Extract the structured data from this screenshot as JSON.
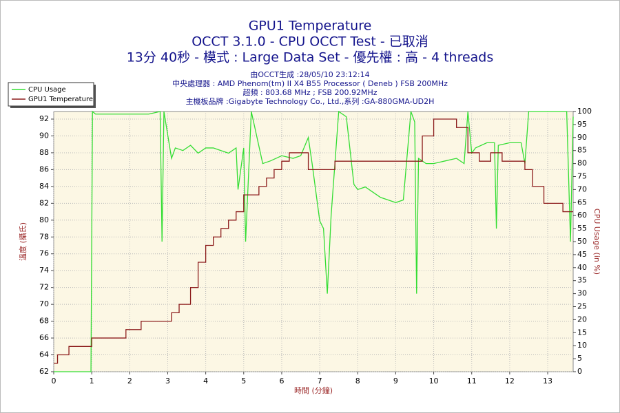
{
  "chart_data": {
    "type": "line",
    "title": "GPU1 Temperature",
    "subtitle": "OCCT 3.1.0 - CPU OCCT Test - 已取消",
    "subtitle2": "13分 40秒 - 模式 : Large Data Set - 優先權 : 高 - 4 threads",
    "info": [
      "由OCCT生成 :28/05/10 23:12:14",
      "中央處理器 : AMD Phenom(tm) II X4 B55 Processor ( Deneb ) FSB 200MHz",
      "超頻 : 803.68 MHz ; FSB 200.92MHz",
      "主機板品牌 :Gigabyte Technology Co., Ltd.,系列 :GA-880GMA-UD2H"
    ],
    "x_label": "時間 (分鐘)",
    "y_label": "溫度 (攝氏)",
    "y2_label": "CPU Usage (in %)",
    "xlim": [
      0,
      13.67
    ],
    "xticks": [
      0,
      1,
      2,
      3,
      4,
      5,
      6,
      7,
      8,
      9,
      10,
      11,
      12,
      13
    ],
    "ylim": [
      62,
      92.9
    ],
    "yticks": [
      62,
      64,
      66,
      68,
      70,
      72,
      74,
      76,
      78,
      80,
      82,
      84,
      86,
      88,
      90,
      92
    ],
    "y2lim": [
      0,
      100
    ],
    "y2ticks": [
      0,
      5,
      10,
      15,
      20,
      25,
      30,
      35,
      40,
      45,
      50,
      55,
      60,
      65,
      70,
      75,
      80,
      85,
      90,
      95,
      100
    ],
    "grid": true,
    "legend": "top-left",
    "series": [
      {
        "name": "CPU Usage",
        "color": "#33dd33",
        "axis": "y2",
        "x": [
          0,
          0.98,
          1.02,
          1.1,
          1.5,
          2.0,
          2.5,
          2.8,
          2.85,
          2.9,
          3.1,
          3.2,
          3.4,
          3.6,
          3.8,
          4.0,
          4.2,
          4.4,
          4.6,
          4.8,
          4.85,
          5.0,
          5.05,
          5.2,
          5.5,
          5.7,
          6.0,
          6.3,
          6.5,
          6.7,
          6.8,
          7.0,
          7.1,
          7.2,
          7.3,
          7.5,
          7.7,
          7.9,
          8.0,
          8.2,
          8.4,
          8.6,
          8.8,
          9.0,
          9.2,
          9.4,
          9.5,
          9.55,
          9.6,
          9.8,
          10.0,
          10.3,
          10.6,
          10.8,
          10.9,
          11.0,
          11.1,
          11.4,
          11.6,
          11.65,
          11.7,
          12.0,
          12.3,
          12.4,
          12.5,
          13.0,
          13.5,
          13.6,
          13.67
        ],
        "values": [
          0,
          0,
          100,
          99,
          99,
          99,
          99,
          100,
          50,
          100,
          82,
          86,
          85,
          87,
          84,
          86,
          86,
          85,
          84,
          86,
          70,
          86,
          50,
          100,
          80,
          81,
          83,
          82,
          83,
          90,
          80,
          58,
          55,
          30,
          60,
          100,
          98,
          72,
          70,
          71,
          69,
          67,
          66,
          65,
          66,
          100,
          96,
          30,
          82,
          80,
          80,
          81,
          82,
          80,
          100,
          84,
          86,
          88,
          88,
          55,
          87,
          88,
          88,
          80,
          100,
          100,
          100,
          50,
          98
        ]
      },
      {
        "name": "GPU1 Temperature",
        "color": "#8b1a1a",
        "axis": "y",
        "x": [
          0,
          0.1,
          0.1,
          0.4,
          0.4,
          1.0,
          1.0,
          1.9,
          1.9,
          2.3,
          2.3,
          3.1,
          3.1,
          3.3,
          3.3,
          3.6,
          3.6,
          3.8,
          3.8,
          4.0,
          4.0,
          4.2,
          4.2,
          4.4,
          4.4,
          4.6,
          4.6,
          4.8,
          4.8,
          5.0,
          5.0,
          5.4,
          5.4,
          5.6,
          5.6,
          5.8,
          5.8,
          6.0,
          6.0,
          6.2,
          6.2,
          6.7,
          6.7,
          7.4,
          7.4,
          9.7,
          9.7,
          10.0,
          10.0,
          10.6,
          10.6,
          10.9,
          10.9,
          11.2,
          11.2,
          11.5,
          11.5,
          11.8,
          11.8,
          12.4,
          12.4,
          12.6,
          12.6,
          12.9,
          12.9,
          13.4,
          13.4,
          13.67
        ],
        "values": [
          63,
          63,
          64,
          64,
          65,
          65,
          66,
          66,
          67,
          67,
          68,
          68,
          69,
          69,
          70,
          70,
          72,
          72,
          75,
          75,
          77,
          77,
          78,
          78,
          79,
          79,
          80,
          80,
          81,
          81,
          83,
          83,
          84,
          84,
          85,
          85,
          86,
          86,
          87,
          87,
          88,
          88,
          86,
          86,
          87,
          87,
          90,
          90,
          92,
          92,
          91,
          91,
          88,
          88,
          87,
          87,
          88,
          88,
          87,
          87,
          86,
          86,
          84,
          84,
          82,
          82,
          81,
          81
        ]
      }
    ]
  }
}
